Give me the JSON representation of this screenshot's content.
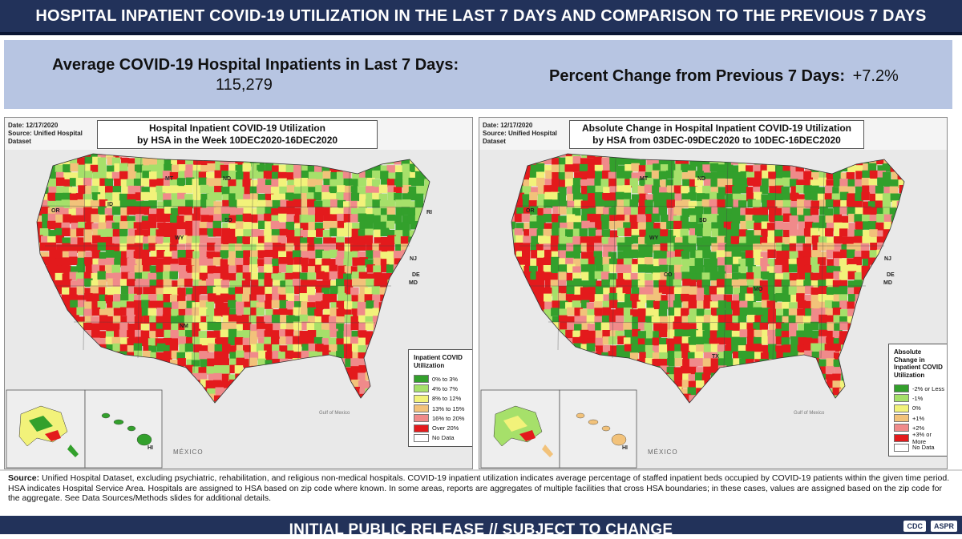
{
  "header": {
    "title": "HOSPITAL INPATIENT COVID-19 UTILIZATION IN THE LAST 7 DAYS AND COMPARISON TO THE PREVIOUS 7 DAYS"
  },
  "summary": {
    "avg_label": "Average COVID-19 Hospital Inpatients in Last 7 Days:",
    "avg_value": "115,279",
    "pct_label": "Percent Change from Previous 7 Days:",
    "pct_value": "+7.2%"
  },
  "maps": [
    {
      "meta": {
        "date": "Date: 12/17/2020",
        "source": "Source: Unified Hospital Dataset"
      },
      "title": {
        "line1": "Hospital Inpatient COVID-19 Utilization",
        "line2": "by HSA in the Week 10DEC2020-16DEC2020"
      },
      "legend": {
        "title": "Inpatient COVID Utilization",
        "items": [
          {
            "label": "0% to 3%",
            "color": "#33a02c"
          },
          {
            "label": "4% to 7%",
            "color": "#a6e06a"
          },
          {
            "label": "8% to 12%",
            "color": "#f2f27a"
          },
          {
            "label": "13% to 15%",
            "color": "#f2c27a"
          },
          {
            "label": "16% to 20%",
            "color": "#f08a8a"
          },
          {
            "label": "Over 20%",
            "color": "#e31a1c"
          },
          {
            "label": "No Data",
            "color": "#ffffff"
          }
        ]
      }
    },
    {
      "meta": {
        "date": "Date: 12/17/2020",
        "source": "Source: Unified Hospital Dataset"
      },
      "title": {
        "line1": "Absolute Change in Hospital Inpatient COVID-19 Utilization",
        "line2": "by HSA from 03DEC-09DEC2020 to 10DEC-16DEC2020"
      },
      "legend": {
        "title": "Absolute Change in Inpatient COVID Utilization",
        "items": [
          {
            "label": "-2% or Less",
            "color": "#33a02c"
          },
          {
            "label": "-1%",
            "color": "#a6e06a"
          },
          {
            "label": "0%",
            "color": "#f2f27a"
          },
          {
            "label": "+1%",
            "color": "#f2c27a"
          },
          {
            "label": "+2%",
            "color": "#f08a8a"
          },
          {
            "label": "+3% or More",
            "color": "#e31a1c"
          },
          {
            "label": "No Data",
            "color": "#ffffff"
          }
        ]
      }
    }
  ],
  "map_labels": {
    "mexico": "MÉXICO",
    "gulf": "Gulf of Mexico",
    "left_states": [
      "MT",
      "ND",
      "OR",
      "ID",
      "WY",
      "SD",
      "NM",
      "NJ",
      "DE",
      "MD",
      "RI",
      "HI"
    ],
    "right_states": [
      "MT",
      "ND",
      "OR",
      "WY",
      "SD",
      "CO",
      "MO",
      "TX",
      "NJ",
      "DE",
      "MD",
      "HI"
    ]
  },
  "source_note": {
    "label": "Source:",
    "text": "Unified Hospital Dataset, excluding psychiatric, rehabilitation, and religious non-medical hospitals. COVID-19 inpatient utilization indicates average percentage of staffed inpatient beds occupied by COVID-19 patients within the given time period. HSA indicates Hospital Service Area. Hospitals are assigned to HSA based on zip code where known. In some areas, reports are aggregates of multiple facilities that cross HSA boundaries; in these cases, values are assigned based on the zip code for the aggregate. See Data Sources/Methods slides for additional details."
  },
  "footer": {
    "text": "INITIAL PUBLIC RELEASE // SUBJECT TO CHANGE",
    "logo_cdc": "CDC",
    "logo_aspr": "ASPR"
  }
}
